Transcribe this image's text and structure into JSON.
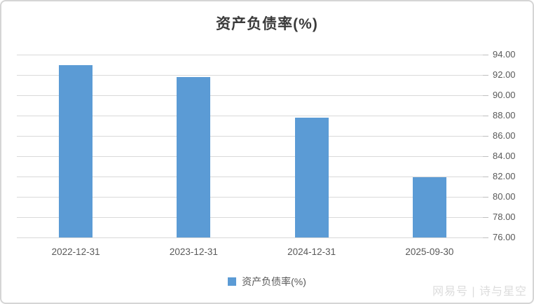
{
  "title": "资产负债率(%)",
  "legend": {
    "label": "资产负债率(%)",
    "swatch_color": "#5B9BD5"
  },
  "watermark": "网易号 | 诗与星空",
  "colors": {
    "bar": "#5B9BD5",
    "gridline": "#d9d9d9",
    "tick": "#bfbfbf",
    "axis_text": "#595959",
    "title_text": "#3b3b3b",
    "watermark_text": "#dcdcdc",
    "border": "#d5d5d5"
  },
  "chart_data": {
    "type": "bar",
    "title": "资产负债率(%)",
    "categories": [
      "2022-12-31",
      "2023-12-31",
      "2024-12-31",
      "2025-09-30"
    ],
    "series": [
      {
        "name": "资产负债率(%)",
        "values": [
          93.0,
          91.8,
          87.8,
          81.9
        ]
      }
    ],
    "xlabel": "",
    "ylabel": "",
    "ylim": [
      76,
      94
    ],
    "ytick_step": 2,
    "ytick_labels": [
      "94.00",
      "92.00",
      "90.00",
      "88.00",
      "86.00",
      "84.00",
      "82.00",
      "80.00",
      "78.00",
      "76.00"
    ],
    "yaxis_side": "right",
    "grid": true,
    "legend_position": "bottom"
  }
}
